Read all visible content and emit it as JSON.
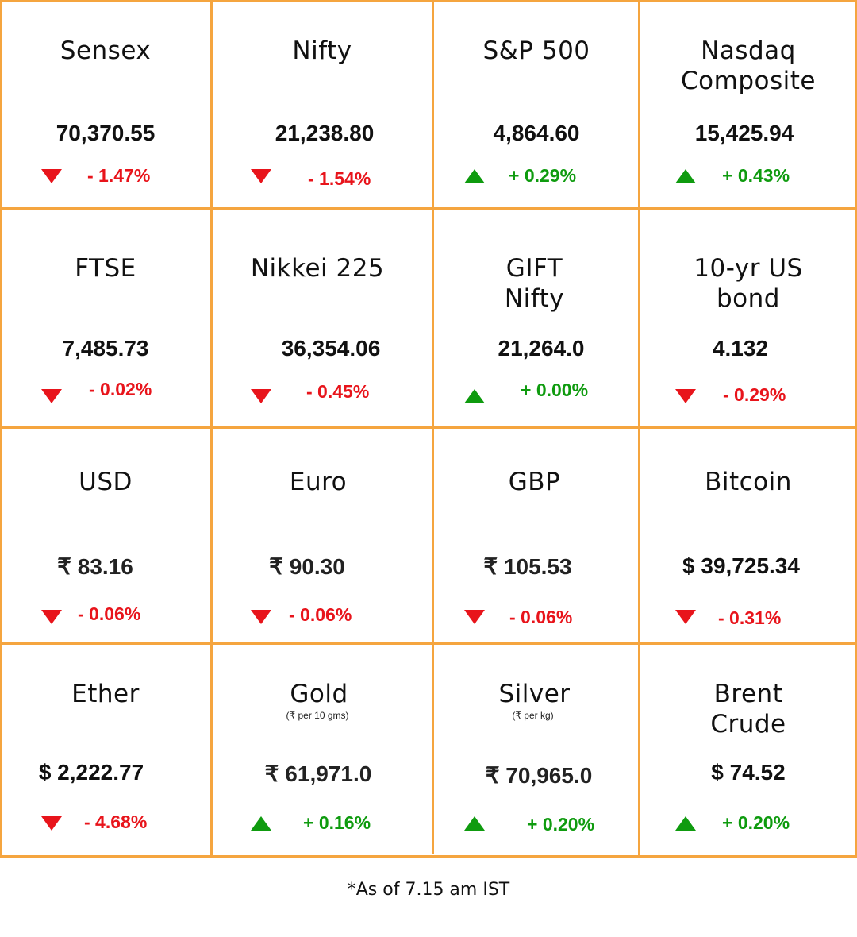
{
  "colors": {
    "grid_line": "#f5a53f",
    "up": "#0f9b0f",
    "down": "#e8141b"
  },
  "markets": [
    {
      "name": "Sensex",
      "value": "70,370.55",
      "direction": "down",
      "change": "- 1.47%"
    },
    {
      "name": "Nifty",
      "value": "21,238.80",
      "direction": "down",
      "change": "- 1.54%"
    },
    {
      "name": "S&P 500",
      "value": "4,864.60",
      "direction": "up",
      "change": "+ 0.29%"
    },
    {
      "name": "Nasdaq\nComposite",
      "value": "15,425.94",
      "direction": "up",
      "change": "+ 0.43%"
    },
    {
      "name": "FTSE",
      "value": "7,485.73",
      "direction": "down",
      "change": "- 0.02%"
    },
    {
      "name": "Nikkei 225",
      "value": "36,354.06",
      "direction": "down",
      "change": "- 0.45%"
    },
    {
      "name": "GIFT\nNifty",
      "value": "21,264.0",
      "direction": "up",
      "change": "+ 0.00%"
    },
    {
      "name": "10-yr US\nbond",
      "value": "4.132",
      "direction": "down",
      "change": "- 0.29%"
    },
    {
      "name": "USD",
      "value": "₹ 83.16",
      "direction": "down",
      "change": "- 0.06%"
    },
    {
      "name": "Euro",
      "value": "₹ 90.30",
      "direction": "down",
      "change": "- 0.06%"
    },
    {
      "name": "GBP",
      "value": "₹ 105.53",
      "direction": "down",
      "change": "- 0.06%"
    },
    {
      "name": "Bitcoin",
      "value": "$ 39,725.34",
      "direction": "down",
      "change": "- 0.31%"
    },
    {
      "name": "Ether",
      "value": "$ 2,222.77",
      "direction": "down",
      "change": "- 4.68%"
    },
    {
      "name": "Gold",
      "sub": "(₹ per 10 gms)",
      "value": "₹ 61,971.0",
      "direction": "up",
      "change": "+ 0.16%"
    },
    {
      "name": "Silver",
      "sub": "(₹ per kg)",
      "value": "₹ 70,965.0",
      "direction": "up",
      "change": "+ 0.20%"
    },
    {
      "name": "Brent\nCrude",
      "value": "$ 74.52",
      "direction": "up",
      "change": "+ 0.20%"
    }
  ],
  "footnote": "*As of 7.15 am IST"
}
